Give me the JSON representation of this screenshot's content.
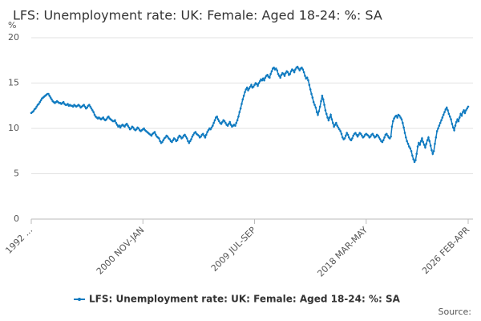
{
  "chart_data": {
    "type": "line",
    "title": "LFS: Unemployment rate: UK: Female: Aged 18-24: %: SA",
    "y_label": "%",
    "source": "Source:",
    "ylim": [
      0,
      20
    ],
    "yticks": [
      0,
      5,
      10,
      15,
      20
    ],
    "grid": true,
    "legend": "bottom",
    "categories": [
      "1992 ...",
      null,
      null,
      null,
      null,
      null,
      null,
      null,
      null,
      null,
      null,
      null,
      null,
      null,
      null,
      null,
      null,
      null,
      null,
      null,
      null,
      null,
      null,
      null,
      null,
      null,
      null,
      null,
      null,
      null,
      null,
      null,
      null,
      null,
      null,
      null,
      null,
      null,
      null,
      null,
      null,
      null,
      null,
      null,
      null,
      null,
      null,
      null,
      null,
      null,
      null,
      null,
      null,
      null,
      null,
      null,
      null,
      null,
      null,
      null,
      null,
      null,
      null,
      null,
      null,
      null,
      null,
      null,
      null,
      null,
      null,
      null,
      null,
      null,
      null,
      null,
      null,
      null,
      null,
      null,
      null,
      null,
      null,
      null,
      null,
      null,
      null,
      null,
      null,
      null,
      null,
      null,
      null,
      null,
      null,
      null,
      null,
      null,
      null,
      null,
      null,
      null,
      null,
      null,
      "2000 NOV-JAN",
      null,
      null,
      null,
      null,
      null,
      null,
      null,
      null,
      null,
      null,
      null,
      null,
      null,
      null,
      null,
      null,
      null,
      null,
      null,
      null,
      null,
      null,
      null,
      null,
      null,
      null,
      null,
      null,
      null,
      null,
      null,
      null,
      null,
      null,
      null,
      null,
      null,
      null,
      null,
      null,
      null,
      null,
      null,
      null,
      null,
      null,
      null,
      null,
      null,
      null,
      null,
      null,
      null,
      null,
      null,
      null,
      null,
      null,
      null,
      null,
      null,
      null,
      null,
      null,
      null,
      null,
      null,
      null,
      null,
      null,
      null,
      null,
      null,
      null,
      null,
      null,
      null,
      null,
      null,
      null,
      null,
      null,
      null,
      null,
      null,
      null,
      null,
      null,
      null,
      null,
      null,
      null,
      null,
      null,
      null,
      null,
      null,
      null,
      null,
      null,
      null,
      null,
      null,
      "2009 JUL-SEP",
      null,
      null,
      null,
      null,
      null,
      null,
      null,
      null,
      null,
      null,
      null,
      null,
      null,
      null,
      null,
      null,
      null,
      null,
      null,
      null,
      null,
      null,
      null,
      null,
      null,
      null,
      null,
      null,
      null,
      null,
      null,
      null,
      null,
      null,
      null,
      null,
      null,
      null,
      null,
      null,
      null,
      null,
      null,
      null,
      null,
      null,
      null,
      null,
      null,
      null,
      null,
      null,
      null,
      null,
      null,
      null,
      null,
      null,
      null,
      null,
      null,
      null,
      null,
      null,
      null,
      null,
      null,
      null,
      null,
      null,
      null,
      null,
      null,
      null,
      null,
      null,
      null,
      null,
      null,
      null,
      null,
      null,
      null,
      null,
      null,
      null,
      null,
      null,
      null,
      null,
      null,
      null,
      null,
      null,
      null,
      null,
      null,
      null,
      null,
      null,
      null,
      null,
      null,
      "2018 MAR-MAY",
      null,
      null,
      null,
      null,
      null,
      null,
      null,
      null,
      null,
      null,
      null,
      null,
      null,
      null,
      null,
      null,
      null,
      null,
      null,
      null,
      null,
      null,
      null,
      null,
      null,
      null,
      null,
      null,
      null,
      null,
      null,
      null,
      null,
      null,
      null,
      null,
      null,
      null,
      null,
      null,
      null,
      null,
      null,
      null,
      null,
      null,
      null,
      null,
      null,
      null,
      null,
      null,
      null,
      null,
      null,
      null,
      null,
      null,
      null,
      null,
      null,
      null,
      null,
      null,
      null,
      null,
      null,
      null,
      null,
      null,
      null,
      null,
      null,
      null,
      null,
      null,
      null,
      null,
      null,
      null,
      null,
      null,
      null,
      null,
      null,
      null,
      null,
      null,
      null,
      null,
      null,
      null,
      null,
      null,
      "2026 FEB-APR"
    ],
    "series": [
      {
        "name": "LFS: Unemployment rate: UK: Female: Aged 18-24: %: SA",
        "color": "#0f7ac0",
        "values": [
          11.7,
          11.8,
          11.9,
          12.1,
          12.2,
          12.4,
          12.6,
          12.7,
          12.9,
          13.1,
          13.3,
          13.4,
          13.5,
          13.6,
          13.7,
          13.8,
          13.8,
          13.6,
          13.4,
          13.2,
          13.0,
          12.9,
          12.8,
          12.9,
          13.0,
          12.9,
          12.8,
          12.8,
          12.7,
          12.8,
          12.9,
          12.7,
          12.6,
          12.6,
          12.7,
          12.5,
          12.6,
          12.5,
          12.5,
          12.4,
          12.6,
          12.5,
          12.4,
          12.5,
          12.6,
          12.5,
          12.3,
          12.4,
          12.5,
          12.6,
          12.4,
          12.2,
          12.3,
          12.5,
          12.6,
          12.4,
          12.2,
          12.0,
          11.8,
          11.5,
          11.3,
          11.2,
          11.1,
          11.2,
          11.1,
          11.0,
          11.1,
          11.2,
          11.0,
          10.9,
          11.0,
          11.2,
          11.3,
          11.1,
          11.0,
          10.9,
          10.8,
          10.8,
          10.9,
          10.6,
          10.4,
          10.2,
          10.3,
          10.1,
          10.3,
          10.4,
          10.3,
          10.2,
          10.4,
          10.5,
          10.3,
          10.1,
          9.9,
          10.0,
          10.2,
          10.1,
          9.9,
          9.8,
          9.9,
          10.1,
          10.0,
          9.8,
          9.7,
          9.8,
          9.9,
          10.0,
          9.8,
          9.7,
          9.6,
          9.5,
          9.4,
          9.3,
          9.2,
          9.4,
          9.5,
          9.6,
          9.3,
          9.1,
          9.0,
          8.9,
          8.6,
          8.4,
          8.5,
          8.7,
          8.9,
          9.0,
          9.2,
          9.1,
          8.9,
          8.8,
          8.6,
          8.5,
          8.7,
          8.9,
          8.8,
          8.6,
          8.7,
          9.0,
          9.2,
          9.1,
          8.9,
          9.0,
          9.2,
          9.3,
          9.1,
          8.9,
          8.6,
          8.4,
          8.6,
          8.8,
          9.1,
          9.3,
          9.5,
          9.6,
          9.4,
          9.3,
          9.2,
          9.0,
          9.1,
          9.3,
          9.4,
          9.2,
          9.0,
          9.3,
          9.6,
          9.8,
          10.0,
          9.9,
          10.1,
          10.3,
          10.6,
          10.9,
          11.2,
          11.3,
          11.0,
          10.8,
          10.6,
          10.5,
          10.7,
          10.9,
          10.8,
          10.6,
          10.4,
          10.3,
          10.5,
          10.7,
          10.4,
          10.2,
          10.3,
          10.4,
          10.3,
          10.6,
          10.9,
          11.3,
          11.8,
          12.2,
          12.7,
          13.2,
          13.6,
          14.0,
          14.3,
          14.5,
          14.2,
          14.4,
          14.6,
          14.8,
          14.5,
          14.6,
          14.8,
          15.0,
          14.9,
          14.7,
          15.0,
          15.2,
          15.4,
          15.3,
          15.5,
          15.3,
          15.6,
          15.8,
          15.9,
          15.7,
          15.6,
          16.0,
          16.3,
          16.6,
          16.7,
          16.5,
          16.6,
          16.4,
          16.0,
          15.8,
          15.6,
          15.9,
          16.1,
          16.0,
          15.8,
          16.1,
          16.3,
          16.2,
          15.9,
          16.0,
          16.3,
          16.5,
          16.4,
          16.2,
          16.5,
          16.7,
          16.8,
          16.6,
          16.4,
          16.6,
          16.7,
          16.5,
          16.2,
          15.8,
          15.5,
          15.6,
          15.3,
          14.8,
          14.3,
          13.8,
          13.4,
          12.9,
          12.6,
          12.3,
          11.8,
          11.5,
          11.9,
          12.4,
          13.0,
          13.6,
          13.2,
          12.6,
          12.0,
          11.6,
          11.2,
          10.9,
          11.2,
          11.5,
          11.0,
          10.6,
          10.2,
          10.4,
          10.6,
          10.3,
          10.1,
          9.9,
          9.7,
          9.4,
          9.0,
          8.8,
          8.9,
          9.2,
          9.5,
          9.3,
          9.0,
          8.8,
          8.7,
          8.9,
          9.2,
          9.4,
          9.5,
          9.3,
          9.1,
          9.3,
          9.5,
          9.4,
          9.2,
          9.0,
          9.1,
          9.3,
          9.4,
          9.3,
          9.2,
          9.0,
          9.1,
          9.3,
          9.4,
          9.2,
          9.0,
          9.1,
          9.3,
          9.2,
          9.0,
          8.8,
          8.6,
          8.5,
          8.7,
          9.0,
          9.3,
          9.4,
          9.2,
          9.0,
          8.9,
          9.1,
          10.2,
          10.8,
          11.1,
          11.3,
          11.4,
          11.2,
          11.5,
          11.4,
          11.2,
          11.0,
          10.6,
          10.1,
          9.5,
          9.0,
          8.6,
          8.3,
          8.0,
          7.8,
          7.5,
          7.0,
          6.6,
          6.3,
          6.5,
          7.2,
          8.0,
          8.4,
          8.2,
          8.6,
          8.9,
          8.5,
          8.2,
          7.9,
          8.3,
          8.7,
          9.0,
          8.6,
          8.1,
          7.6,
          7.2,
          7.5,
          8.3,
          9.0,
          9.7,
          10.0,
          10.3,
          10.6,
          10.9,
          11.2,
          11.5,
          11.8,
          12.1,
          12.3,
          12.0,
          11.6,
          11.3,
          11.0,
          10.5,
          10.1,
          9.8,
          10.3,
          10.7,
          11.0,
          10.8,
          11.2,
          11.6,
          11.4,
          11.8,
          12.0,
          11.7,
          12.0,
          12.2,
          12.4
        ]
      }
    ]
  }
}
